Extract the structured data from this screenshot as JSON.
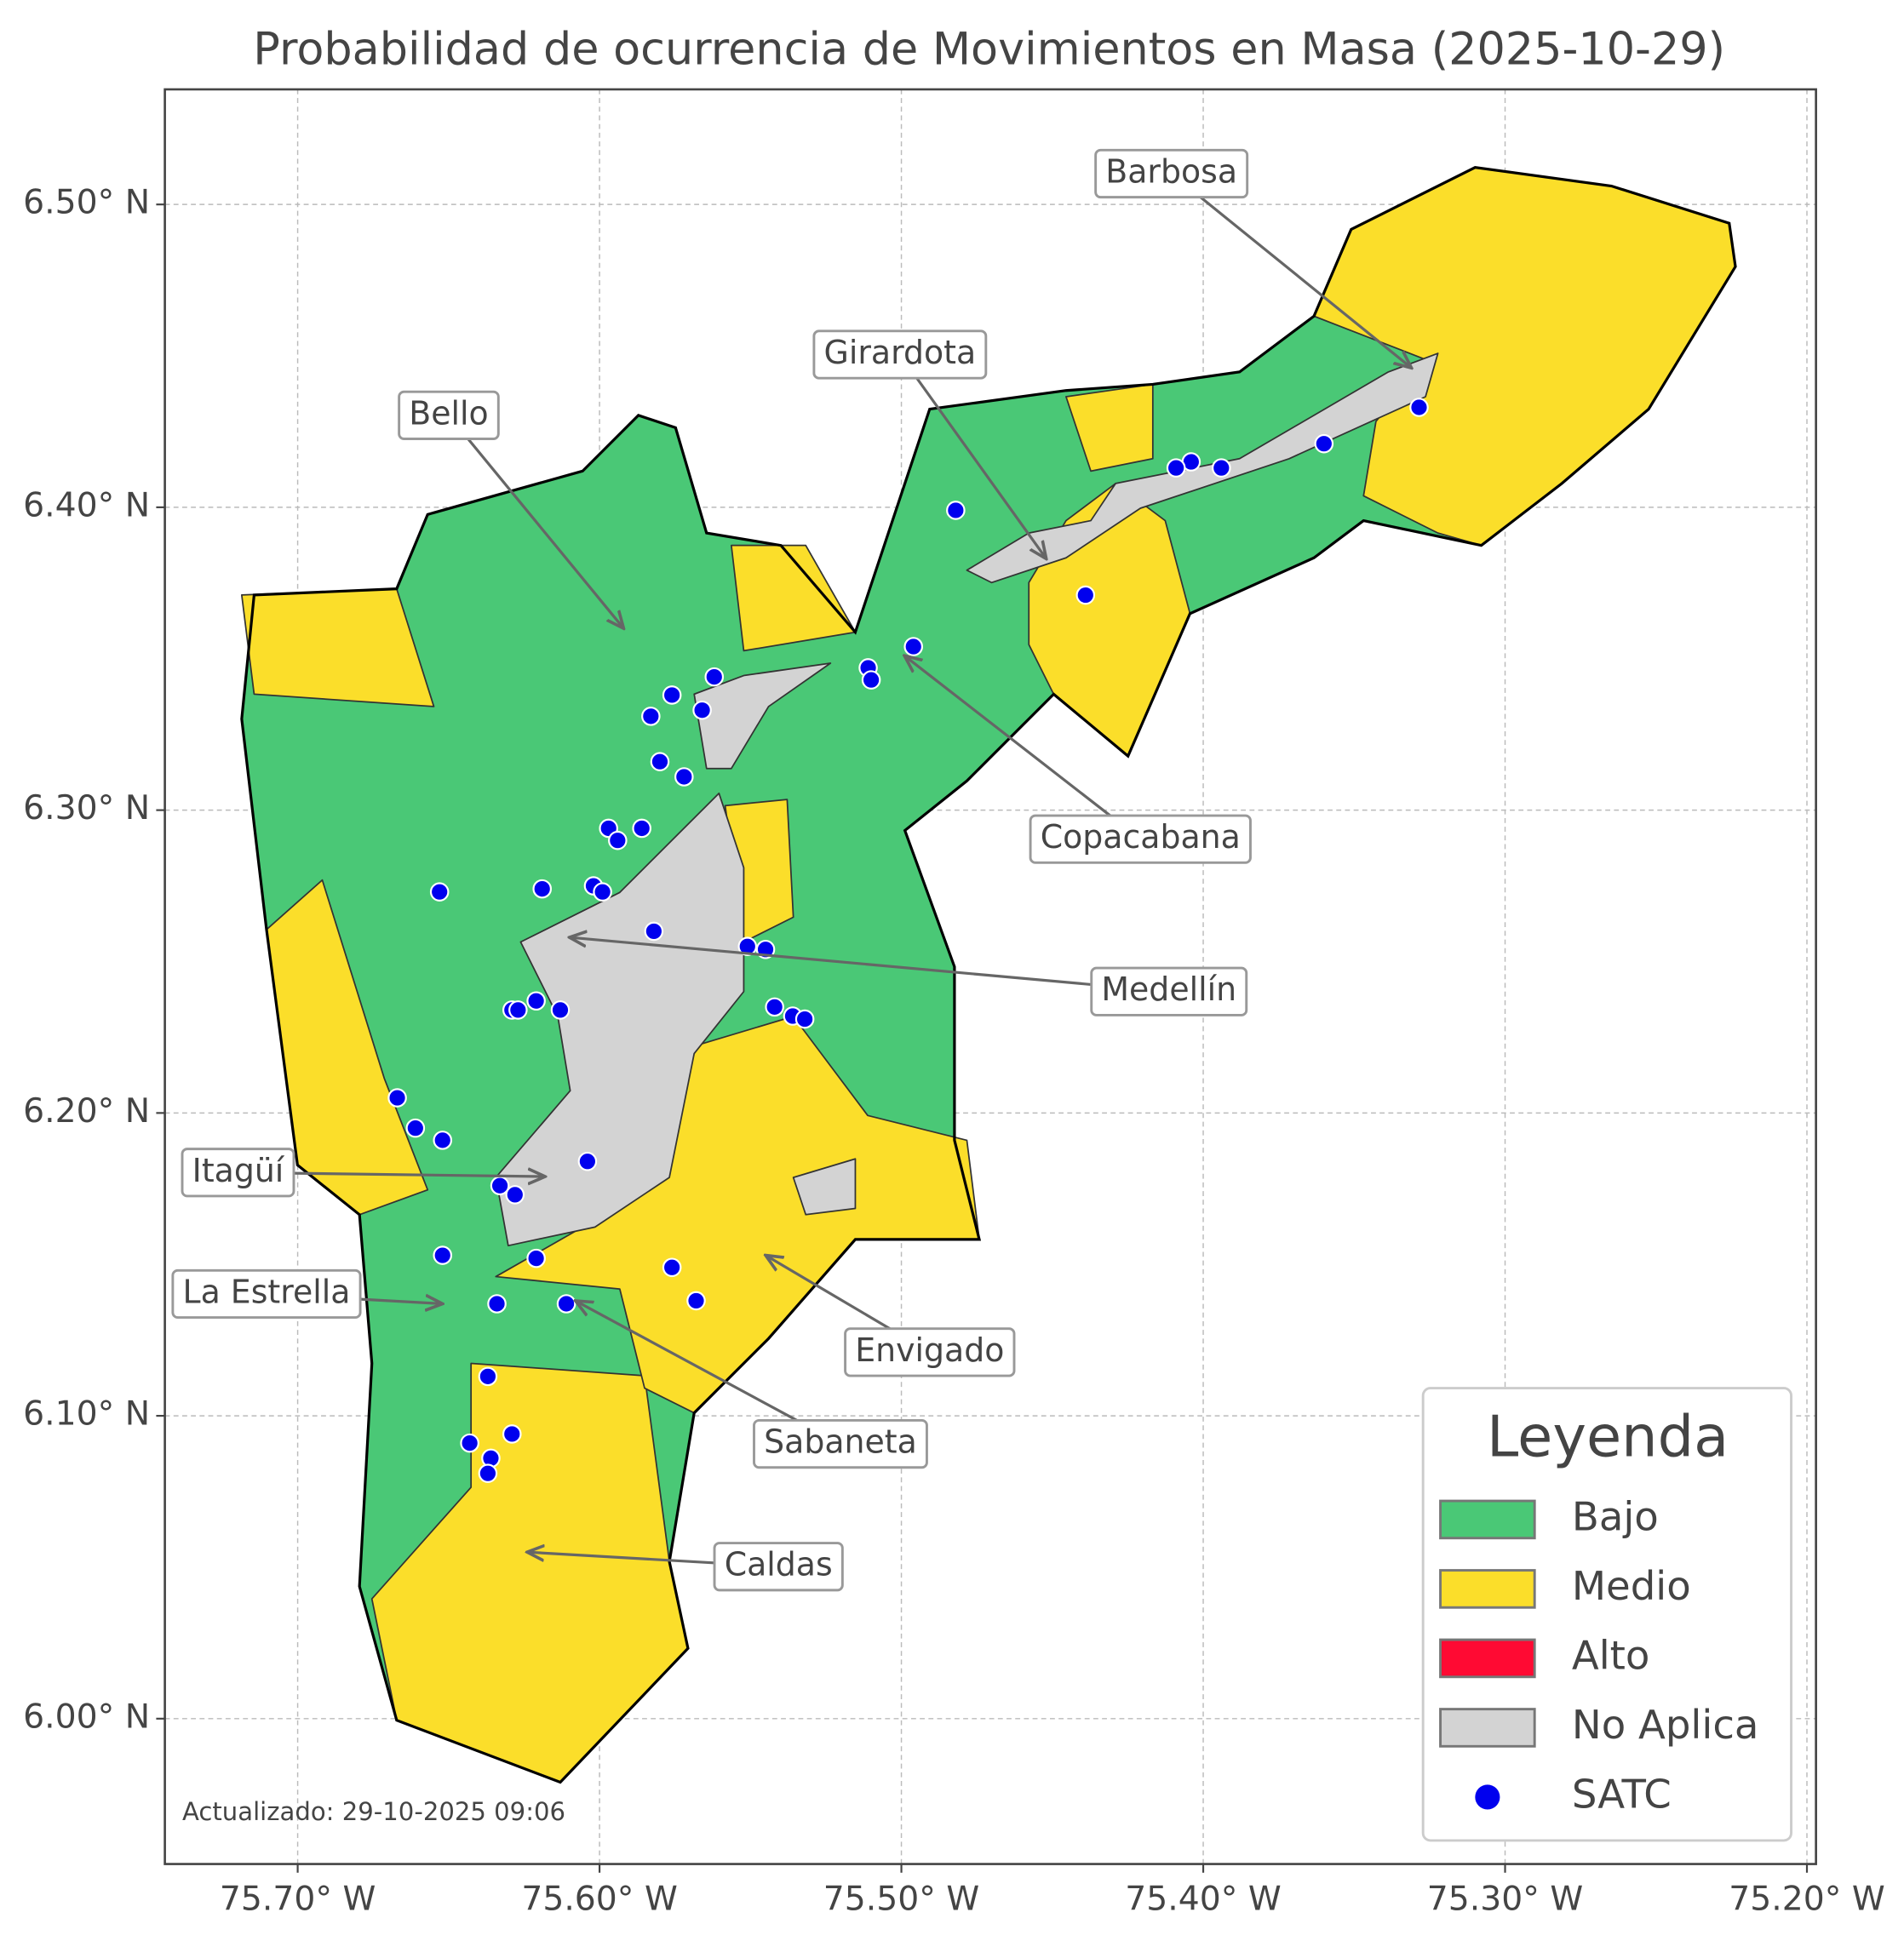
{
  "chart_data": {
    "type": "map",
    "title": "Probabilidad de ocurrencia de Movimientos en Masa (2025-10-29)",
    "xlim": [
      -75.744,
      -75.197
    ],
    "ylim": [
      5.952,
      6.538
    ],
    "xticks": [
      {
        "value": -75.7,
        "label": "75.70° W"
      },
      {
        "value": -75.6,
        "label": "75.60° W"
      },
      {
        "value": -75.5,
        "label": "75.50° W"
      },
      {
        "value": -75.4,
        "label": "75.40° W"
      },
      {
        "value": -75.3,
        "label": "75.30° W"
      },
      {
        "value": -75.2,
        "label": "75.20° W"
      }
    ],
    "yticks": [
      {
        "value": 6.0,
        "label": "6.00° N"
      },
      {
        "value": 6.1,
        "label": "6.10° N"
      },
      {
        "value": 6.2,
        "label": "6.20° N"
      },
      {
        "value": 6.3,
        "label": "6.30° N"
      },
      {
        "value": 6.4,
        "label": "6.40° N"
      },
      {
        "value": 6.5,
        "label": "6.50° N"
      }
    ],
    "grid": true,
    "legend": {
      "title": "Leyenda",
      "position": "lower right",
      "entries": [
        {
          "name": "Bajo",
          "color": "#4ac876"
        },
        {
          "name": "Medio",
          "color": "#fbde2a"
        },
        {
          "name": "Alto",
          "color": "#ff0a33"
        },
        {
          "name": "No Aplica",
          "color": "#d3d3d3"
        }
      ]
    },
    "series": [
      {
        "name": "SATC",
        "color": "#0000ee",
        "x": [
          -75.3285,
          -75.36,
          -75.394,
          -75.404,
          -75.409,
          -75.482,
          -75.439,
          -75.496,
          -75.511,
          -75.51,
          -75.562,
          -75.576,
          -75.583,
          -75.566,
          -75.58,
          -75.572,
          -75.597,
          -75.594,
          -75.586,
          -75.653,
          -75.619,
          -75.602,
          -75.599,
          -75.582,
          -75.551,
          -75.545,
          -75.542,
          -75.536,
          -75.532,
          -75.629,
          -75.627,
          -75.621,
          -75.613,
          -75.667,
          -75.661,
          -75.652,
          -75.604,
          -75.633,
          -75.628,
          -75.652,
          -75.621,
          -75.576,
          -75.568,
          -75.611,
          -75.634,
          -75.637,
          -75.643,
          -75.629,
          -75.636,
          -75.637
        ],
        "y": [
          6.433,
          6.421,
          6.413,
          6.415,
          6.413,
          6.399,
          6.371,
          6.354,
          6.347,
          6.343,
          6.344,
          6.338,
          6.331,
          6.333,
          6.316,
          6.311,
          6.294,
          6.29,
          6.294,
          6.273,
          6.274,
          6.275,
          6.273,
          6.26,
          6.255,
          6.254,
          6.235,
          6.232,
          6.231,
          6.234,
          6.234,
          6.237,
          6.234,
          6.205,
          6.195,
          6.191,
          6.184,
          6.176,
          6.173,
          6.153,
          6.152,
          6.149,
          6.138,
          6.137,
          6.137,
          6.113,
          6.091,
          6.094,
          6.086,
          6.081
        ]
      }
    ],
    "annotations": [
      {
        "text": "Barbosa",
        "x": -75.331,
        "y": 6.446
      },
      {
        "text": "Girardota",
        "x": -75.452,
        "y": 6.383
      },
      {
        "text": "Bello",
        "x": -75.592,
        "y": 6.36
      },
      {
        "text": "Copacabana",
        "x": -75.499,
        "y": 6.351
      },
      {
        "text": "Medellín",
        "x": -75.61,
        "y": 6.258
      },
      {
        "text": "Itagüí",
        "x": -75.618,
        "y": 6.179
      },
      {
        "text": "La Estrella",
        "x": -75.652,
        "y": 6.137
      },
      {
        "text": "Envigado",
        "x": -75.545,
        "y": 6.153
      },
      {
        "text": "Sabaneta",
        "x": -75.608,
        "y": 6.138
      },
      {
        "text": "Caldas",
        "x": -75.624,
        "y": 6.055
      }
    ],
    "footnote": "Actualizado: 29-10-2025 09:06"
  }
}
